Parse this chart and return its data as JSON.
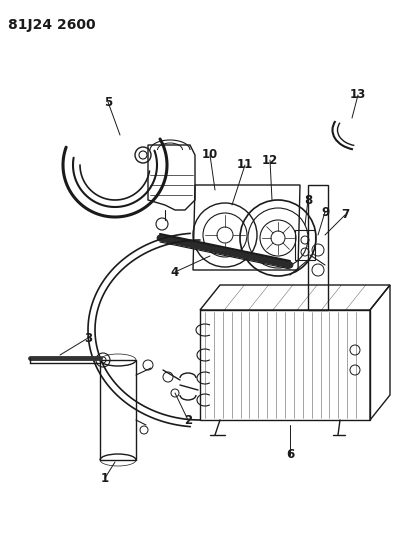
{
  "title": "81J24 2600",
  "bg_color": "#ffffff",
  "line_color": "#1a1a1a",
  "title_fontsize": 10,
  "label_fontsize": 8.5,
  "fig_w": 4.01,
  "fig_h": 5.33,
  "dpi": 100
}
